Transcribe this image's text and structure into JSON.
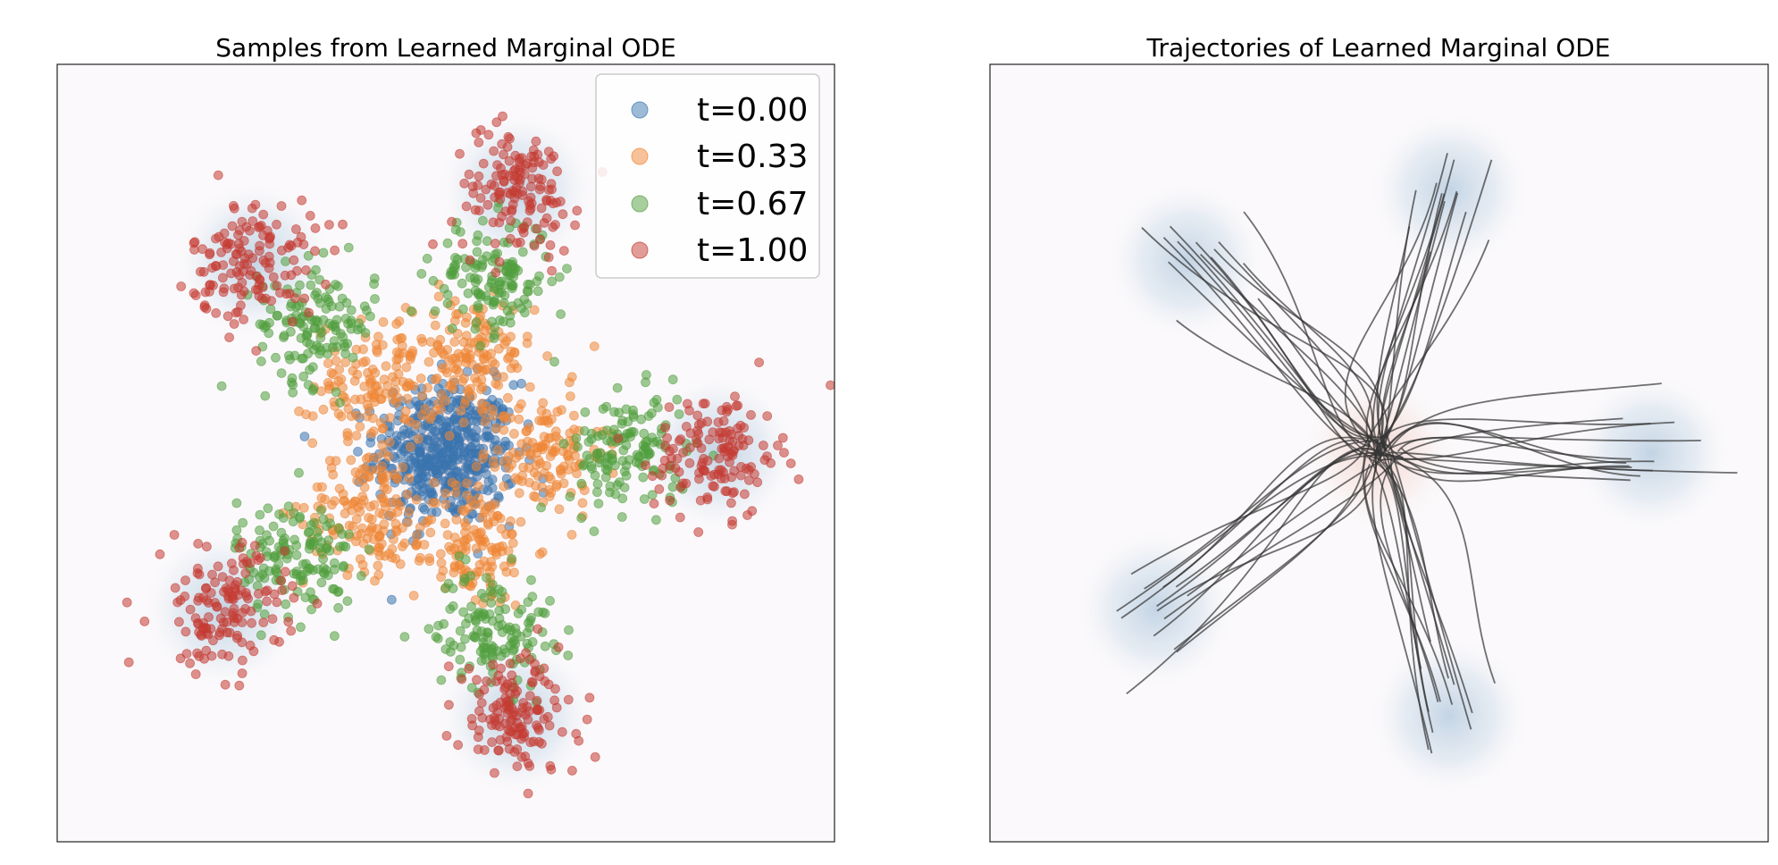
{
  "chart_data": [
    {
      "type": "scatter",
      "title": "Samples from Learned Marginal ODE",
      "xlabel": "",
      "ylabel": "",
      "xlim": [
        -5,
        5
      ],
      "ylim": [
        -5,
        5
      ],
      "grid": false,
      "axis_ticks": false,
      "legend": {
        "position": "top-right"
      },
      "background": "Gaussian-mixture density: 1 source mode at origin, 5 target modes at radius 3.5",
      "series": [
        {
          "name": "t=0.00",
          "color": "#3b75af",
          "center_radius": 0.0,
          "spread": 0.45,
          "points_per_cluster": 500,
          "clusters": 1
        },
        {
          "name": "t=0.33",
          "color": "#ef8636",
          "center_radius": 1.25,
          "spread": 0.4,
          "points_per_cluster": 140,
          "clusters": 5
        },
        {
          "name": "t=0.67",
          "color": "#519e3e",
          "center_radius": 2.35,
          "spread": 0.38,
          "points_per_cluster": 140,
          "clusters": 5
        },
        {
          "name": "t=1.00",
          "color": "#c53a32",
          "center_radius": 3.5,
          "spread": 0.4,
          "points_per_cluster": 140,
          "clusters": 5
        }
      ],
      "mode_angles_deg": [
        135,
        75,
        0,
        -75,
        -145
      ]
    },
    {
      "type": "line",
      "title": "Trajectories of Learned Marginal ODE",
      "xlabel": "",
      "ylabel": "",
      "xlim": [
        -5,
        5
      ],
      "ylim": [
        -5,
        5
      ],
      "grid": false,
      "axis_ticks": false,
      "line_color": "#333333",
      "trajectories_per_mode": 14,
      "mode_angles_deg": [
        135,
        75,
        0,
        -75,
        -145
      ],
      "target_radius": 3.5,
      "source_radius": 0.0
    }
  ]
}
